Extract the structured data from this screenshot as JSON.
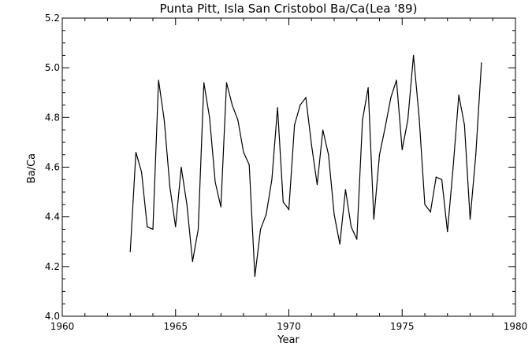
{
  "chart_data": {
    "type": "line",
    "title": "Punta Pitt, Isla San Cristobol Ba/Ca(Lea '89)",
    "xlabel": "Year",
    "ylabel": "Ba/Ca",
    "xlim": [
      1960,
      1980
    ],
    "ylim": [
      4.0,
      5.2
    ],
    "x_ticks": [
      1960,
      1965,
      1970,
      1975,
      1980
    ],
    "x_tick_labels": [
      "1960",
      "1965",
      "1970",
      "1975",
      "1980"
    ],
    "y_ticks": [
      4.0,
      4.2,
      4.4,
      4.6,
      4.8,
      5.0,
      5.2
    ],
    "y_tick_labels": [
      "4.0",
      "4.2",
      "4.4",
      "4.6",
      "4.8",
      "5.0",
      "5.2"
    ],
    "x_minor_step": 1,
    "y_minor_step": 0.05,
    "grid": false,
    "line_color": "#000000",
    "series": [
      {
        "x": [
          1963.0,
          1963.25,
          1963.5,
          1963.75,
          1964.0,
          1964.25,
          1964.5,
          1964.75,
          1965.0,
          1965.25,
          1965.5,
          1965.75,
          1966.0,
          1966.25,
          1966.5,
          1966.75,
          1967.0,
          1967.25,
          1967.5,
          1967.75,
          1968.0,
          1968.25,
          1968.5,
          1968.75,
          1969.0,
          1969.25,
          1969.5,
          1969.75,
          1970.0,
          1970.25,
          1970.5,
          1970.75,
          1971.0,
          1971.25,
          1971.5,
          1971.75,
          1972.0,
          1972.25,
          1972.5,
          1972.75,
          1973.0,
          1973.25,
          1973.5,
          1973.75,
          1974.0,
          1974.25,
          1974.5,
          1974.75,
          1975.0,
          1975.25,
          1975.5,
          1975.75,
          1976.0,
          1976.25,
          1976.5,
          1976.75,
          1977.0,
          1977.25,
          1977.5,
          1977.75,
          1978.0,
          1978.25,
          1978.5
        ],
        "y": [
          4.26,
          4.66,
          4.58,
          4.36,
          4.35,
          4.95,
          4.79,
          4.52,
          4.36,
          4.6,
          4.45,
          4.22,
          4.35,
          4.94,
          4.8,
          4.54,
          4.44,
          4.94,
          4.85,
          4.79,
          4.66,
          4.61,
          4.16,
          4.35,
          4.41,
          4.55,
          4.84,
          4.46,
          4.43,
          4.77,
          4.85,
          4.88,
          4.69,
          4.53,
          4.75,
          4.65,
          4.41,
          4.29,
          4.51,
          4.36,
          4.31,
          4.79,
          4.92,
          4.39,
          4.65,
          4.76,
          4.88,
          4.95,
          4.67,
          4.79,
          5.05,
          4.8,
          4.45,
          4.42,
          4.56,
          4.55,
          4.34,
          4.6,
          4.89,
          4.77,
          4.39,
          4.65,
          5.02
        ]
      }
    ]
  }
}
